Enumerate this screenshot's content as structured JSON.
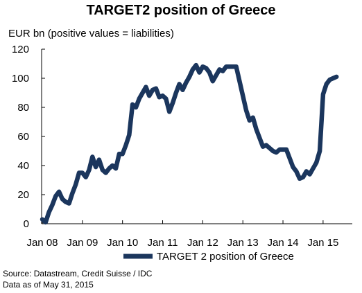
{
  "chart_data": {
    "type": "line",
    "title": "TARGET2 position of Greece",
    "ylabel": "EUR bn (positive values = liabilities)",
    "xlabel": "",
    "x_ticks": [
      "Jan 08",
      "Jan 09",
      "Jan 10",
      "Jan 11",
      "Jan 12",
      "Jan 13",
      "Jan 14",
      "Jan 15"
    ],
    "y_ticks": [
      0,
      20,
      40,
      60,
      80,
      100,
      120
    ],
    "ylim": [
      0,
      120
    ],
    "xlim": [
      "2008-01",
      "2015-05"
    ],
    "grid": false,
    "legend_position": "bottom",
    "series": [
      {
        "name": "TARGET 2 position of Greece",
        "color": "#1b365d",
        "points": [
          [
            "2008-01",
            3
          ],
          [
            "2008-02",
            1
          ],
          [
            "2008-03",
            8
          ],
          [
            "2008-04",
            13
          ],
          [
            "2008-05",
            19
          ],
          [
            "2008-06",
            22
          ],
          [
            "2008-07",
            17
          ],
          [
            "2008-08",
            15
          ],
          [
            "2008-09",
            14
          ],
          [
            "2008-10",
            21
          ],
          [
            "2008-11",
            27
          ],
          [
            "2008-12",
            35
          ],
          [
            "2009-01",
            35
          ],
          [
            "2009-02",
            32
          ],
          [
            "2009-03",
            37
          ],
          [
            "2009-04",
            46
          ],
          [
            "2009-05",
            39
          ],
          [
            "2009-06",
            44
          ],
          [
            "2009-07",
            37
          ],
          [
            "2009-08",
            35
          ],
          [
            "2009-09",
            38
          ],
          [
            "2009-10",
            40
          ],
          [
            "2009-11",
            38
          ],
          [
            "2009-12",
            48
          ],
          [
            "2010-01",
            48
          ],
          [
            "2010-02",
            54
          ],
          [
            "2010-03",
            61
          ],
          [
            "2010-04",
            82
          ],
          [
            "2010-05",
            80
          ],
          [
            "2010-06",
            86
          ],
          [
            "2010-07",
            90
          ],
          [
            "2010-08",
            94
          ],
          [
            "2010-09",
            88
          ],
          [
            "2010-10",
            92
          ],
          [
            "2010-11",
            93
          ],
          [
            "2010-12",
            87
          ],
          [
            "2011-01",
            88
          ],
          [
            "2011-02",
            86
          ],
          [
            "2011-03",
            77
          ],
          [
            "2011-04",
            83
          ],
          [
            "2011-05",
            90
          ],
          [
            "2011-06",
            96
          ],
          [
            "2011-07",
            92
          ],
          [
            "2011-08",
            97
          ],
          [
            "2011-09",
            101
          ],
          [
            "2011-10",
            106
          ],
          [
            "2011-11",
            109
          ],
          [
            "2011-12",
            104
          ],
          [
            "2012-01",
            108
          ],
          [
            "2012-02",
            107
          ],
          [
            "2012-03",
            104
          ],
          [
            "2012-04",
            98
          ],
          [
            "2012-05",
            102
          ],
          [
            "2012-06",
            106
          ],
          [
            "2012-07",
            105
          ],
          [
            "2012-08",
            108
          ],
          [
            "2012-09",
            108
          ],
          [
            "2012-10",
            108
          ],
          [
            "2012-11",
            108
          ],
          [
            "2012-12",
            98
          ],
          [
            "2013-01",
            88
          ],
          [
            "2013-02",
            78
          ],
          [
            "2013-03",
            71
          ],
          [
            "2013-04",
            73
          ],
          [
            "2013-05",
            65
          ],
          [
            "2013-06",
            59
          ],
          [
            "2013-07",
            53
          ],
          [
            "2013-08",
            54
          ],
          [
            "2013-09",
            52
          ],
          [
            "2013-10",
            50
          ],
          [
            "2013-11",
            49
          ],
          [
            "2013-12",
            51
          ],
          [
            "2014-01",
            51
          ],
          [
            "2014-02",
            51
          ],
          [
            "2014-03",
            45
          ],
          [
            "2014-04",
            39
          ],
          [
            "2014-05",
            36
          ],
          [
            "2014-06",
            31
          ],
          [
            "2014-07",
            32
          ],
          [
            "2014-08",
            36
          ],
          [
            "2014-09",
            34
          ],
          [
            "2014-10",
            38
          ],
          [
            "2014-11",
            42
          ],
          [
            "2014-12",
            50
          ],
          [
            "2015-01",
            89
          ],
          [
            "2015-02",
            96
          ],
          [
            "2015-03",
            99
          ],
          [
            "2015-04",
            100
          ],
          [
            "2015-05",
            101
          ]
        ]
      }
    ]
  },
  "footer": {
    "source": "Source: Datastream, Credit Suisse / IDC",
    "date_note": "Data as of May 31, 2015"
  }
}
